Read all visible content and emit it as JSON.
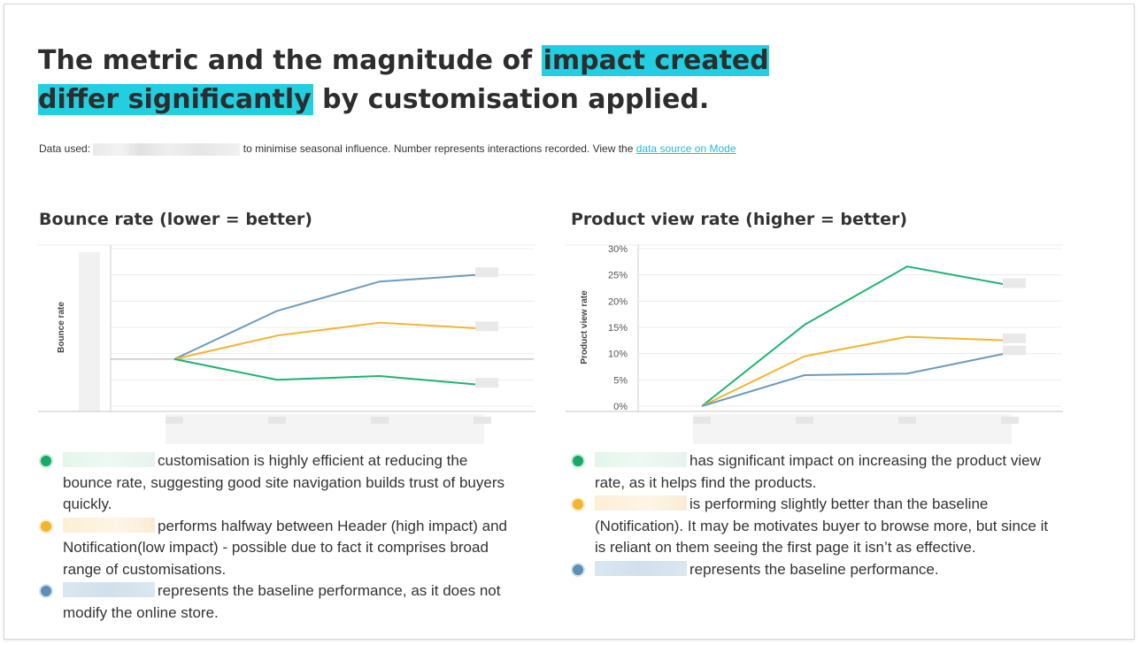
{
  "headline": {
    "before": "The metric and the magnitude of ",
    "highlight": "impact created differ significantly",
    "after": " by customisation applied."
  },
  "data_note": {
    "prefix": "Data used:",
    "suffix": "to minimise seasonal influence. Number represents interactions recorded. View the",
    "link": "data source on Mode"
  },
  "colors": {
    "highlight": "#21cfe1",
    "green": "#1fb374",
    "yellow": "#f2b531",
    "blue": "#6c9cbf",
    "link": "#21bcd6"
  },
  "chart_data": [
    {
      "type": "line",
      "title": "Bounce rate (lower = better)",
      "ylabel": "Bounce rate",
      "x": [
        1,
        2,
        3,
        4
      ],
      "series": [
        {
          "color": "#6c9cbf",
          "values": [
            0,
            2.05,
            3.3,
            3.6
          ]
        },
        {
          "color": "#f2b531",
          "values": [
            0,
            1.0,
            1.55,
            1.3
          ]
        },
        {
          "color": "#1fb374",
          "values": [
            0,
            -0.88,
            -0.72,
            -1.1
          ]
        }
      ],
      "ylim": [
        -2,
        4.7
      ],
      "y_ticks": [],
      "grid": true,
      "legend": "none"
    },
    {
      "type": "line",
      "title": "Product view rate (higher = better)",
      "ylabel": "Product view rate",
      "x": [
        1,
        2,
        3,
        4
      ],
      "series": [
        {
          "color": "#1fb374",
          "values": [
            0,
            15.5,
            26.6,
            23
          ]
        },
        {
          "color": "#f2b531",
          "values": [
            0,
            9.5,
            13.2,
            12.5
          ]
        },
        {
          "color": "#6c9cbf",
          "values": [
            0,
            5.9,
            6.2,
            10.2
          ]
        }
      ],
      "ylim": [
        0,
        30
      ],
      "y_ticks": [
        "0%",
        "5%",
        "10%",
        "15%",
        "20%",
        "25%",
        "30%"
      ],
      "grid": true,
      "legend": "none"
    }
  ],
  "bounce_notes": [
    {
      "color": "green",
      "text": "customisation is highly efficient at reducing the bounce rate, suggesting good site navigation builds trust of buyers quickly."
    },
    {
      "color": "yellow",
      "text": "performs halfway between Header (high impact) and Notification(low impact) - possible due to fact it comprises broad range of customisations."
    },
    {
      "color": "blue",
      "text": "represents the baseline performance, as it does not modify the online store."
    }
  ],
  "product_notes": [
    {
      "color": "green",
      "text": "has significant impact on increasing the product view rate, as it helps find the products."
    },
    {
      "color": "yellow",
      "text": "is performing slightly better than the baseline (Notification). It may be motivates buyer to browse more, but since it is reliant on them seeing the first page it isn’t as effective."
    },
    {
      "color": "blue",
      "text": "represents the baseline performance."
    }
  ]
}
